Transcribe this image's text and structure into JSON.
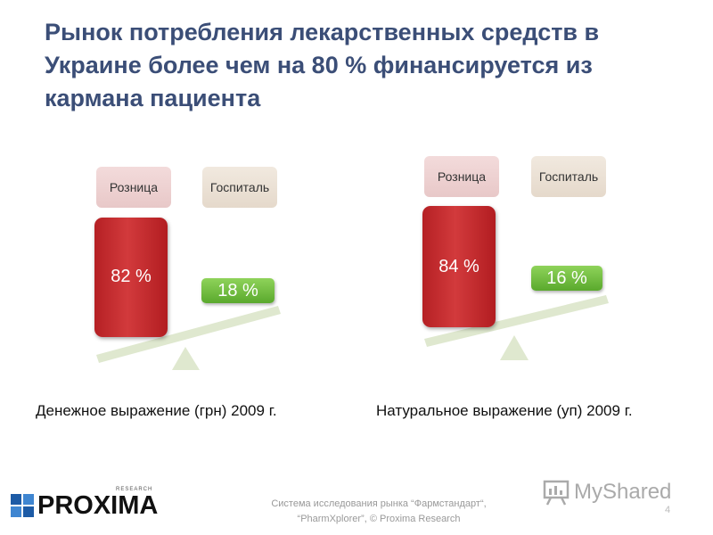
{
  "title": "Рынок потребления лекарственных средств в Украине более чем на 80 % финансируется из кармана пациента",
  "diagrams": [
    {
      "caption": "Денежное выражение (грн) 2009 г.",
      "retail_label": "Розница",
      "hospital_label": "Госпиталь",
      "retail_value": "82 %",
      "hospital_value": "18 %"
    },
    {
      "caption": "Натуральное выражение (уп) 2009 г.",
      "retail_label": "Розница",
      "hospital_label": "Госпиталь",
      "retail_value": "84 %",
      "hospital_value": "16 %"
    }
  ],
  "colors": {
    "title": "#3b4e77",
    "retail_bar": "#c62a2d",
    "hospital_box": "#6cbb3c",
    "beam": "#dfe8cf"
  },
  "logo": {
    "name": "PROXIMA",
    "sub": "RESEARCH"
  },
  "footer": {
    "line1": "Система исследования рынка “Фармстандарт“,",
    "line2": "“PharmXplorer”, © Proxima Research"
  },
  "page_number": "4",
  "watermark": "MyShared"
}
